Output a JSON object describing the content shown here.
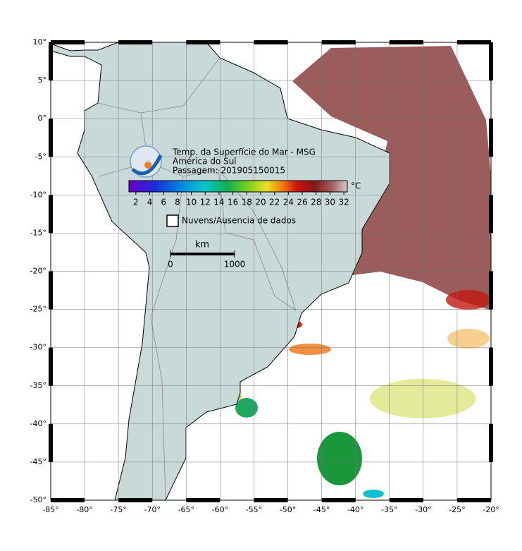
{
  "map": {
    "title": "Temp. da Superfície do Mar - MSG",
    "subtitle": "América do Sul",
    "pass": "Passagem: 201905150015",
    "colorbar": {
      "unit": "°C",
      "lim": [
        1,
        32.5
      ],
      "ticks": [
        2,
        4,
        6,
        8,
        10,
        12,
        14,
        16,
        18,
        20,
        22,
        24,
        26,
        28,
        30,
        32
      ]
    },
    "legend": "Nuvens/Ausencia de dados",
    "scale": {
      "unit": "km",
      "lim": [
        0,
        1000
      ],
      "ticks": [
        0,
        1000
      ]
    },
    "xlim": [
      -85,
      -20
    ],
    "ylim": [
      -50,
      10
    ],
    "xticks": [
      {
        "value": -85,
        "label": "-85°"
      },
      {
        "value": -80,
        "label": "-80°"
      },
      {
        "value": -75,
        "label": "-75°"
      },
      {
        "value": -70,
        "label": "-70°"
      },
      {
        "value": -65,
        "label": "-65°"
      },
      {
        "value": -60,
        "label": "-60°"
      },
      {
        "value": -55,
        "label": "-55°"
      },
      {
        "value": -50,
        "label": "-50°"
      },
      {
        "value": -45,
        "label": "-45°"
      },
      {
        "value": -40,
        "label": "-40°"
      },
      {
        "value": -35,
        "label": "-35°"
      },
      {
        "value": -30,
        "label": "-30°"
      },
      {
        "value": -25,
        "label": "-25°"
      },
      {
        "value": -20,
        "label": "-20°"
      }
    ],
    "yticks": [
      {
        "value": 10,
        "label": "10°"
      },
      {
        "value": 5,
        "label": "5°"
      },
      {
        "value": 0,
        "label": "0°"
      },
      {
        "value": -5,
        "label": "-5°"
      },
      {
        "value": -10,
        "label": "-10°"
      },
      {
        "value": -15,
        "label": "-15°"
      },
      {
        "value": -20,
        "label": "-20°"
      },
      {
        "value": -25,
        "label": "-25°"
      },
      {
        "value": -30,
        "label": "-30°"
      },
      {
        "value": -35,
        "label": "-35°"
      },
      {
        "value": -40,
        "label": "-40°"
      },
      {
        "value": -45,
        "label": "-45°"
      },
      {
        "value": -50,
        "label": "-50°"
      }
    ]
  }
}
